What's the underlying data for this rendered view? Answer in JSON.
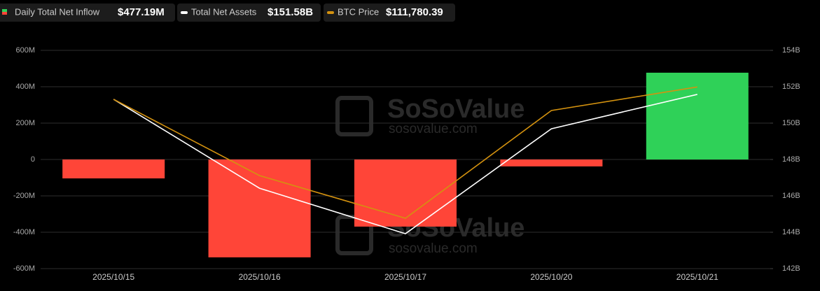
{
  "chart_data": {
    "type": "bar_line",
    "categories": [
      "2025/10/15",
      "2025/10/16",
      "2025/10/17",
      "2025/10/20",
      "2025/10/21"
    ],
    "ylim": [
      -600,
      600
    ],
    "yticks": [
      {
        "value": 600,
        "label": "600M"
      },
      {
        "value": 400,
        "label": "400M"
      },
      {
        "value": 200,
        "label": "200M"
      },
      0,
      {
        "value": -200,
        "label": "-200M"
      },
      {
        "value": -400,
        "label": "-400M"
      },
      {
        "value": -600,
        "label": "-600M"
      }
    ],
    "y2lim": [
      142,
      154
    ],
    "y2ticks": [
      {
        "value": 154,
        "label": "154B"
      },
      {
        "value": 152,
        "label": "152B"
      },
      {
        "value": 150,
        "label": "150B"
      },
      {
        "value": 148,
        "label": "148B"
      },
      {
        "value": 146,
        "label": "146B"
      },
      {
        "value": 144,
        "label": "144B"
      },
      {
        "value": 142,
        "label": "142B"
      }
    ],
    "y3lim": [
      102000,
      113750
    ],
    "grid": true,
    "watermark": [
      "SoSoValue",
      "sosovalue.com"
    ],
    "series": [
      {
        "name": "Daily Total Net Inflow",
        "latest_label": "$477.19M",
        "kind": "bar",
        "positive_color": "#2fd158",
        "negative_color": "#ff4538",
        "values": [
          -104,
          -538,
          -369,
          -38,
          477.19
        ]
      },
      {
        "name": "Total Net Assets",
        "latest_label": "$151.58B",
        "kind": "line",
        "axis": "y2",
        "color": "#ffffff",
        "values": [
          151.31,
          146.42,
          143.92,
          149.69,
          151.58
        ]
      },
      {
        "name": "BTC Price",
        "latest_label": "$111,780.39",
        "kind": "line",
        "axis": "y3",
        "color": "#d4920f",
        "values": [
          111114,
          107009,
          104712,
          110511,
          111780.39
        ]
      }
    ]
  }
}
